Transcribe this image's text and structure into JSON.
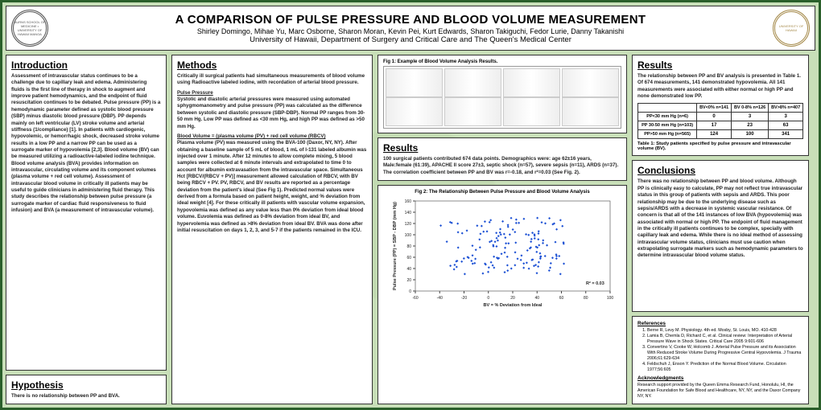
{
  "header": {
    "title": "A COMPARISON OF PULSE PRESSURE AND BLOOD VOLUME MEASUREMENT",
    "authors": "Shirley Domingo, Mihae Yu, Marc Osborne, Sharon Moran, Kevin Pei, Kurt Edwards, Sharon Takiguchi, Fedor Lurie, Danny Takanishi",
    "affil": "University of Hawaii, Department of Surgery and Critical Care and The Queen's Medical Center",
    "left_seal": "BURNS SCHOOL OF MEDICINE • UNIVERSITY OF HAWAII MANOA",
    "right_seal": "UNIVERSITY OF HAWAII"
  },
  "intro": {
    "h": "Introduction",
    "p": "Assessment of intravascular status continues to be a challenge due to capillary leak and edema. Administering fluids is the first line of therapy in shock to augment and improve patient hemodynamics, and the endpoint of fluid resuscitation continues to be debated.\n\nPulse pressure (PP) is a hemodynamic parameter defined as systolic blood pressure (SBP) minus diastolic blood pressure (DBP). PP depends mainly on left ventricular (LV) stroke volume and arterial stiffness (1/compliance) [1]. In patients with cardiogenic, hypovolemic, or hemorrhagic shock, decreased stroke volume results in a low PP and a narrow PP can be used as a surrogate marker of hypovolemia [2,3].\n\nBlood volume (BV) can be measured utilizing a radioactive-labeled iodine technique. Blood volume analysis (BVA) provides information on intravascular, circulating volume and its component volumes (plasma volume + red cell volume). Assessment of intravascular blood volume in critically ill patients may be useful to guide clinicians in administering fluid therapy.\n\nThis study describes the relationship between pulse pressure (a surrogate marker of cardiac fluid responsiveness to fluid infusion) and BVA (a measurement of intravascular volume)."
  },
  "hyp": {
    "h": "Hypothesis",
    "p": "There is no relationship between PP and BVA."
  },
  "methods": {
    "h": "Methods",
    "p1": "Critically ill surgical patients had simultaneous measurements of blood volume using Radioactive labeled iodine, with recordation of arterial blood pressure.",
    "p2h": "Pulse Pressure",
    "p2": "Systolic and diastolic arterial pressures were measured using automated sphygmomanometry and pulse pressure (PP) was calculated as the difference between systolic and diastolic pressure (SBP-DBP). Normal PP ranges from 30-50 mm Hg. Low PP was defined as <30 mm Hg, and high PP was defined as >50 mm Hg.",
    "p3h": "Blood Volume =  (plasma volume (PV) + red cell volume (RBCV)",
    "p3": "Plasma volume (PV) was measured using the BVA-100 (Daxor, NY, NY). After obtaining a baseline sample of 5 mL of blood, 1 mL of I-131 labeled albumin was injected over 1 minute. After 12 minutes to allow complete mixing, 5 blood samples were collected at 6 minute intervals and extrapolated to time 0 to account for albumin extravasation from the intravascular space. Simultaneous Hct [RBCV/(RBCV + PV)] measurement allowed calculation of RBCV, with BV being RBCV + PV. PV, RBCV, and BV results are reported as a percentage deviation from the patient's ideal (See Fig 1). Predicted normal values were derived from a formula based on patient height, weight, and % deviation from ideal weight [4]. For these critically ill patients with vascular volume expansion, hypovolemia was defined as any value less than 0% deviation from ideal blood volume. Euvolemia was defined as 0-8% deviation from ideal BV, and hypervolemia was defined as >8% deviation from ideal BV. BVA was done after initial resuscitation on days 1, 2, 3, and 5-7 if the patients remained in the ICU."
  },
  "res1": {
    "h": "Results",
    "p": "100 surgical patients contributed 674 data points. Demographics were: age 62±16 years, Male:female (61:39), APACHE II score 27±3, septic shock (n=57), severe sepsis (n=11), ARDS (n=37). The correlation coefficient between PP and BV was r=-0.18, and r²=0.03 (See Fig. 2)."
  },
  "fig1cap": "Fig 1:  Example of Blood Volume Analysis Results.",
  "res2": {
    "h": "Results",
    "p": "The relationship between PP and BV analysis is presented in Table 1. Of 674 measurements, 141 demonstrated hypovolemia. All 141 measurements were associated with either normal or high PP and none demonstrated low PP.",
    "table": {
      "headers": [
        "",
        "BV<0%\nn=141",
        "BV 0-8%\nn=126",
        "BV>8%\nn=407"
      ],
      "rows": [
        [
          "PP<30 mm Hg\n(n=6)",
          "0",
          "3",
          "3"
        ],
        [
          "PP 30-50 mm Hg\n(n=103)",
          "17",
          "23",
          "63"
        ],
        [
          "PP>50 mm Hg\n(n=565)",
          "124",
          "100",
          "341"
        ]
      ]
    },
    "tcap": "Table 1:  Study patients specified by pulse pressure and intravascular volume (BV)."
  },
  "scatter": {
    "cap": "Fig 2:  The Relationship Between Pulse Pressure and Blood Volume Analysis",
    "ylabel": "Pulse Pressure (PP) = SBP - DBP (mm Hg)",
    "xlabel": "BV = % Deviation from Ideal",
    "xlim": [
      -60,
      100
    ],
    "xstep": 20,
    "ylim": [
      0,
      160
    ],
    "ystep": 20,
    "r": "R² = 0.03",
    "dot_color": "#1a4fd4",
    "grid_color": "#444",
    "n_pts": 150
  },
  "concl": {
    "h": "Conclusions",
    "p": "There was no relationship between PP and blood volume. Although PP is clinically easy to calculate, PP may not reflect true intravascular status in this group of patients with sepsis and ARDS. This poor relationship may be due to the underlying disease such as sepsis/ARDS with a decrease in systemic vascular resistance. Of concern is that all of the 141 instances of low BVA (hypovolemia) was associated with normal or high PP.\n\nThe endpoint of fluid management in the critically ill patients continues to be complex, specially with capillary leak and edema. While there is no ideal method of assessing intravascular volume status, clinicians must use caution when extrapolating surrogate markers such as hemodynamic parameters to determine intravascular blood volume status."
  },
  "refs": {
    "h": "References",
    "items": [
      "Berne R, Levy M. Physiology. 4th ed. Mosby, St. Louis, MO. 410-428",
      "Lamia B, Chemla D, Richard C, et al. Clinical review: Interpretation of Arterial Pressure Wave in Shock States. Critical Care 2005 9:601-606",
      "Convertino V, Cooke W, Holcomb J. Arterial Pulse Pressure and its Association With Reduced Stroke Volume During Progressive Central Hypovolemia. J Trauma 2006;61:629-634",
      "Feldschuh J, Enson Y. Prediction of the Normal Blood Volume. Circulation 1977;56:605"
    ],
    "ackh": "Acknowledgments",
    "ack": "Research support provided by the Queen Emma Research Fund, Honolulu, HI, the American Foundation for Safe Blood and Healthcare, NY, NY, and the Daxor Company NY, NY."
  },
  "colors": {
    "bg": "#c8dfb8",
    "border": "#2a5f2a",
    "box": "#ffffff"
  }
}
